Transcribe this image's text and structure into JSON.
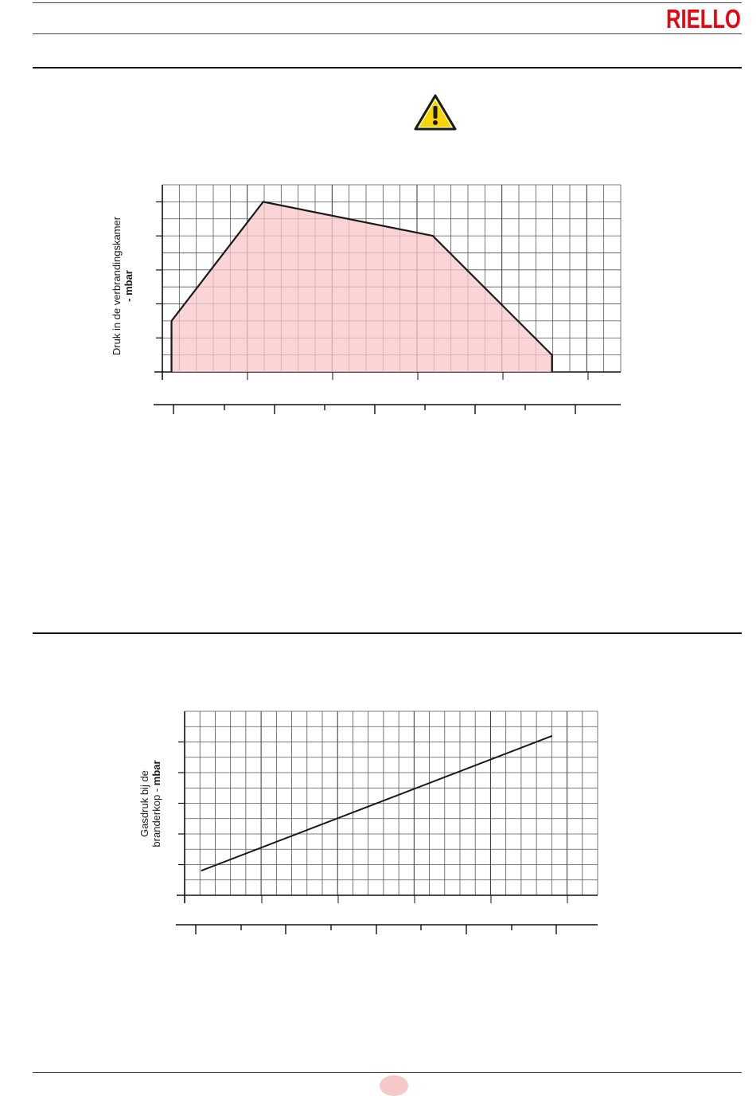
{
  "header": {
    "brand": "RIELLO",
    "brand_color": "#e30613"
  },
  "warning": {
    "icon": "warning-triangle-icon",
    "color": "#f5d400"
  },
  "firing_chart": {
    "ylabel_line1": "Druk in de verbrandingskamer",
    "ylabel_line2": "- mbar",
    "fill_color": "#f9c7c7"
  },
  "pressure_chart": {
    "ylabel_line1": "Gasdruk bij de",
    "ylabel_line2_plain": "branderkop - ",
    "ylabel_line2_bold": "mbar"
  },
  "chart_data": [
    {
      "type": "area",
      "title": "",
      "xlabel": "",
      "ylabel": "Druk in de verbrandingskamer - mbar",
      "x": [
        0.02,
        0.22,
        0.59,
        0.85,
        0.85
      ],
      "y": [
        0.3,
        1.0,
        0.8,
        0.1,
        0.0
      ],
      "xlim": [
        0,
        1
      ],
      "ylim": [
        0,
        1.1
      ],
      "grid": true
    },
    {
      "type": "line",
      "title": "",
      "xlabel": "",
      "ylabel": "Gasdruk bij de branderkop - mbar",
      "x": [
        0.04,
        0.89
      ],
      "y": [
        0.12,
        0.78
      ],
      "xlim": [
        0,
        1
      ],
      "ylim": [
        0,
        0.9
      ],
      "grid": true
    }
  ]
}
